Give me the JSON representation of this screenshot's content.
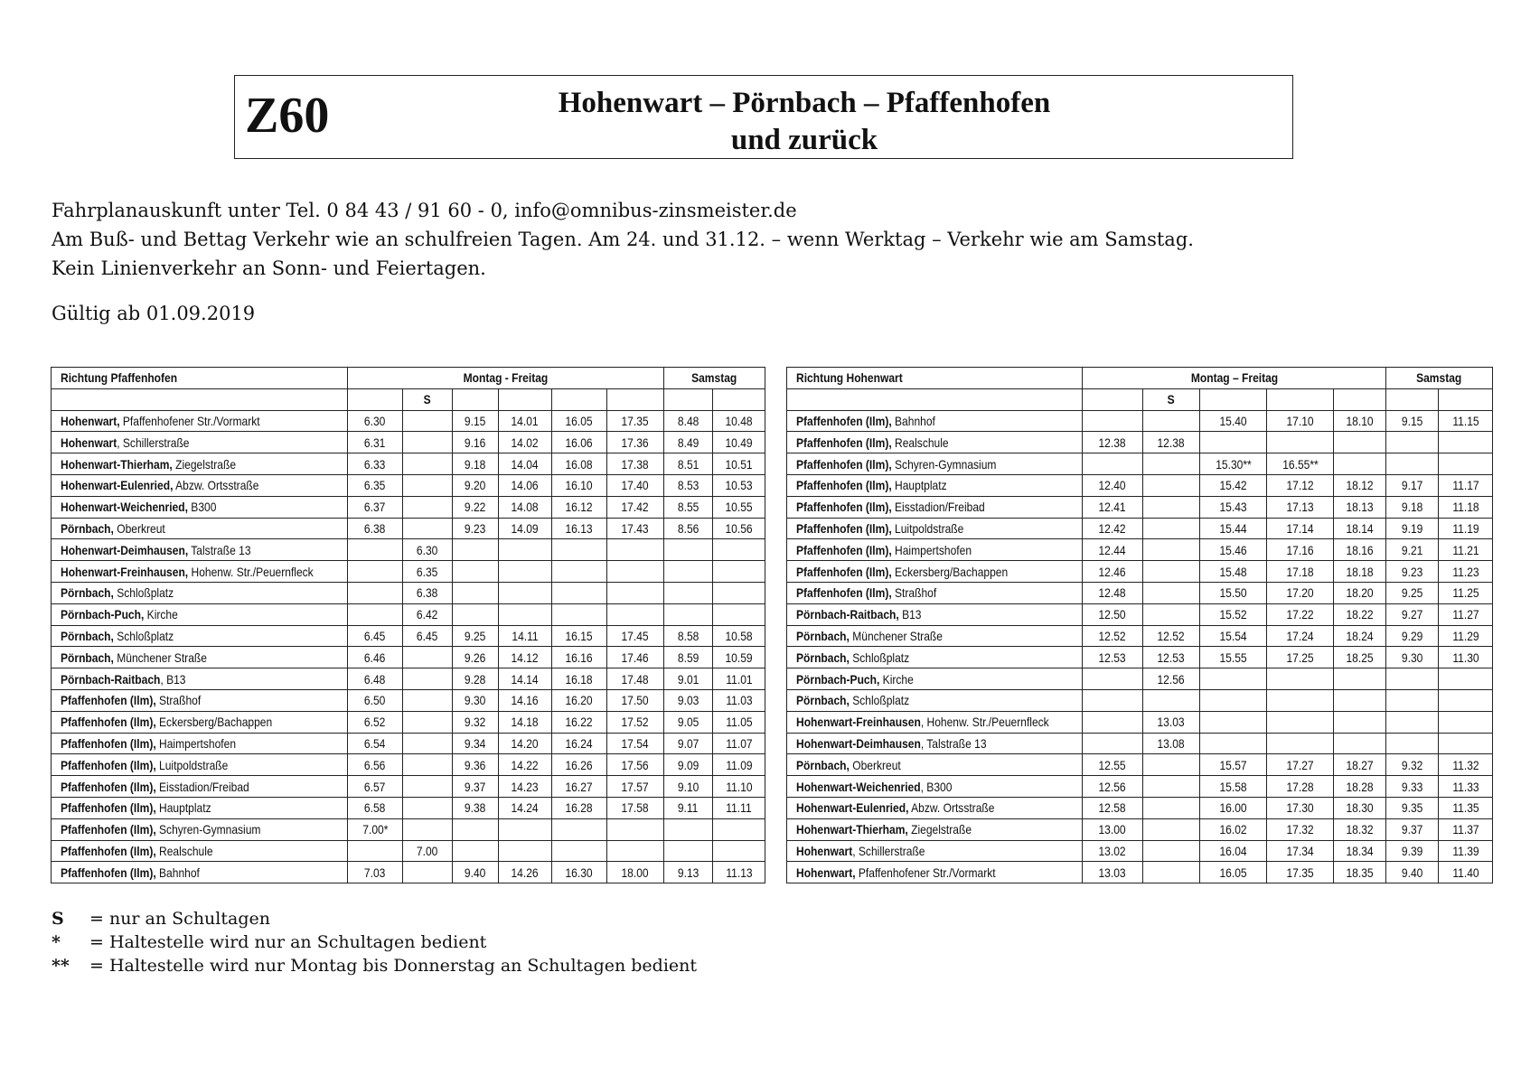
{
  "header": {
    "line_number": "Z60",
    "title_line1": "Hohenwart – Pörnbach – Pfaffenhofen",
    "title_line2": "und zurück"
  },
  "info": {
    "contact": "Fahrplanauskunft unter Tel. 0 84 43 / 91 60 - 0, info@omnibus-zinsmeister.de",
    "holiday_note": "Am Buß- und Bettag Verkehr wie an schulfreien Tagen. Am 24. und 31.12. – wenn Werktag – Verkehr wie am Samstag.",
    "sunday_note": "Kein Linienverkehr an Sonn- und Feiertagen.",
    "valid_from": "Gültig ab 01.09.2019"
  },
  "tables": [
    {
      "direction": "Richtung Pfaffenhofen",
      "weekday_label": "Montag - Freitag",
      "saturday_label": "Samstag",
      "column_flags": [
        "",
        "S",
        "",
        "",
        "",
        "",
        "",
        ""
      ],
      "rows": [
        {
          "bold": "Hohenwart,",
          "rest": " Pfaffenhofener Str./Vormarkt",
          "times": [
            "6.30",
            "",
            "9.15",
            "14.01",
            "16.05",
            "17.35",
            "8.48",
            "10.48"
          ]
        },
        {
          "bold": "Hohenwart",
          "rest": ", Schillerstraße",
          "times": [
            "6.31",
            "",
            "9.16",
            "14.02",
            "16.06",
            "17.36",
            "8.49",
            "10.49"
          ]
        },
        {
          "bold": "Hohenwart-Thierham,",
          "rest": " Ziegelstraße",
          "times": [
            "6.33",
            "",
            "9.18",
            "14.04",
            "16.08",
            "17.38",
            "8.51",
            "10.51"
          ]
        },
        {
          "bold": "Hohenwart-Eulenried,",
          "rest": " Abzw. Ortsstraße",
          "times": [
            "6.35",
            "",
            "9.20",
            "14.06",
            "16.10",
            "17.40",
            "8.53",
            "10.53"
          ]
        },
        {
          "bold": "Hohenwart-Weichenried,",
          "rest": " B300",
          "times": [
            "6.37",
            "",
            "9.22",
            "14.08",
            "16.12",
            "17.42",
            "8.55",
            "10.55"
          ]
        },
        {
          "bold": "Pörnbach,",
          "rest": " Oberkreut",
          "times": [
            "6.38",
            "",
            "9.23",
            "14.09",
            "16.13",
            "17.43",
            "8.56",
            "10.56"
          ]
        },
        {
          "bold": "Hohenwart-Deimhausen,",
          "rest": " Talstraße 13",
          "times": [
            "",
            "6.30",
            "",
            "",
            "",
            "",
            "",
            ""
          ]
        },
        {
          "bold": "Hohenwart-Freinhausen,",
          "rest": " Hohenw. Str./Peuernfleck",
          "times": [
            "",
            "6.35",
            "",
            "",
            "",
            "",
            "",
            ""
          ]
        },
        {
          "bold": "Pörnbach,",
          "rest": " Schloßplatz",
          "times": [
            "",
            "6.38",
            "",
            "",
            "",
            "",
            "",
            ""
          ]
        },
        {
          "bold": "Pörnbach-Puch,",
          "rest": " Kirche",
          "times": [
            "",
            "6.42",
            "",
            "",
            "",
            "",
            "",
            ""
          ]
        },
        {
          "bold": "Pörnbach,",
          "rest": " Schloßplatz",
          "times": [
            "6.45",
            "6.45",
            "9.25",
            "14.11",
            "16.15",
            "17.45",
            "8.58",
            "10.58"
          ]
        },
        {
          "bold": "Pörnbach,",
          "rest": " Münchener Straße",
          "times": [
            "6.46",
            "",
            "9.26",
            "14.12",
            "16.16",
            "17.46",
            "8.59",
            "10.59"
          ]
        },
        {
          "bold": "Pörnbach-Raitbach",
          "rest": ", B13",
          "times": [
            "6.48",
            "",
            "9.28",
            "14.14",
            "16.18",
            "17.48",
            "9.01",
            "11.01"
          ]
        },
        {
          "bold": "Pfaffenhofen (Ilm),",
          "rest": " Straßhof",
          "times": [
            "6.50",
            "",
            "9.30",
            "14.16",
            "16.20",
            "17.50",
            "9.03",
            "11.03"
          ]
        },
        {
          "bold": "Pfaffenhofen (Ilm),",
          "rest": " Eckersberg/Bachappen",
          "times": [
            "6.52",
            "",
            "9.32",
            "14.18",
            "16.22",
            "17.52",
            "9.05",
            "11.05"
          ]
        },
        {
          "bold": "Pfaffenhofen (Ilm),",
          "rest": " Haimpertshofen",
          "times": [
            "6.54",
            "",
            "9.34",
            "14.20",
            "16.24",
            "17.54",
            "9.07",
            "11.07"
          ]
        },
        {
          "bold": "Pfaffenhofen (Ilm),",
          "rest": " Luitpoldstraße",
          "times": [
            "6.56",
            "",
            "9.36",
            "14.22",
            "16.26",
            "17.56",
            "9.09",
            "11.09"
          ]
        },
        {
          "bold": "Pfaffenhofen (Ilm),",
          "rest": " Eisstadion/Freibad",
          "times": [
            "6.57",
            "",
            "9.37",
            "14.23",
            "16.27",
            "17.57",
            "9.10",
            "11.10"
          ]
        },
        {
          "bold": "Pfaffenhofen (Ilm),",
          "rest": " Hauptplatz",
          "times": [
            "6.58",
            "",
            "9.38",
            "14.24",
            "16.28",
            "17.58",
            "9.11",
            "11.11"
          ]
        },
        {
          "bold": "Pfaffenhofen (Ilm),",
          "rest": " Schyren-Gymnasium",
          "times": [
            "7.00*",
            "",
            "",
            "",
            "",
            "",
            "",
            ""
          ]
        },
        {
          "bold": "Pfaffenhofen (Ilm),",
          "rest": " Realschule",
          "times": [
            "",
            "7.00",
            "",
            "",
            "",
            "",
            "",
            ""
          ]
        },
        {
          "bold": "Pfaffenhofen (Ilm),",
          "rest": " Bahnhof",
          "times": [
            "7.03",
            "",
            "9.40",
            "14.26",
            "16.30",
            "18.00",
            "9.13",
            "11.13"
          ]
        }
      ]
    },
    {
      "direction": "Richtung Hohenwart",
      "weekday_label": "Montag – Freitag",
      "saturday_label": "Samstag",
      "column_flags": [
        "",
        "S",
        "",
        "",
        "",
        "",
        ""
      ],
      "rows": [
        {
          "bold": "Pfaffenhofen (Ilm),",
          "rest": " Bahnhof",
          "times": [
            "",
            "",
            "15.40",
            "17.10",
            "18.10",
            "9.15",
            "11.15"
          ]
        },
        {
          "bold": "Pfaffenhofen (Ilm),",
          "rest": " Realschule",
          "times": [
            "12.38",
            "12.38",
            "",
            "",
            "",
            "",
            ""
          ]
        },
        {
          "bold": "Pfaffenhofen (Ilm),",
          "rest": " Schyren-Gymnasium",
          "times": [
            "",
            "",
            "15.30**",
            "16.55**",
            "",
            "",
            ""
          ]
        },
        {
          "bold": "Pfaffenhofen (Ilm),",
          "rest": " Hauptplatz",
          "times": [
            "12.40",
            "",
            "15.42",
            "17.12",
            "18.12",
            "9.17",
            "11.17"
          ]
        },
        {
          "bold": "Pfaffenhofen (Ilm),",
          "rest": " Eisstadion/Freibad",
          "times": [
            "12.41",
            "",
            "15.43",
            "17.13",
            "18.13",
            "9.18",
            "11.18"
          ]
        },
        {
          "bold": "Pfaffenhofen (Ilm),",
          "rest": " Luitpoldstraße",
          "times": [
            "12.42",
            "",
            "15.44",
            "17.14",
            "18.14",
            "9.19",
            "11.19"
          ]
        },
        {
          "bold": "Pfaffenhofen (Ilm),",
          "rest": " Haimpertshofen",
          "times": [
            "12.44",
            "",
            "15.46",
            "17.16",
            "18.16",
            "9.21",
            "11.21"
          ]
        },
        {
          "bold": "Pfaffenhofen (Ilm),",
          "rest": " Eckersberg/Bachappen",
          "times": [
            "12.46",
            "",
            "15.48",
            "17.18",
            "18.18",
            "9.23",
            "11.23"
          ]
        },
        {
          "bold": "Pfaffenhofen (Ilm),",
          "rest": " Straßhof",
          "times": [
            "12.48",
            "",
            "15.50",
            "17.20",
            "18.20",
            "9.25",
            "11.25"
          ]
        },
        {
          "bold": "Pörnbach-Raitbach,",
          "rest": " B13",
          "times": [
            "12.50",
            "",
            "15.52",
            "17.22",
            "18.22",
            "9.27",
            "11.27"
          ]
        },
        {
          "bold": "Pörnbach,",
          "rest": " Münchener Straße",
          "times": [
            "12.52",
            "12.52",
            "15.54",
            "17.24",
            "18.24",
            "9.29",
            "11.29"
          ]
        },
        {
          "bold": "Pörnbach,",
          "rest": " Schloßplatz",
          "times": [
            "12.53",
            "12.53",
            "15.55",
            "17.25",
            "18.25",
            "9.30",
            "11.30"
          ]
        },
        {
          "bold": "Pörnbach-Puch,",
          "rest": " Kirche",
          "times": [
            "",
            "12.56",
            "",
            "",
            "",
            "",
            ""
          ]
        },
        {
          "bold": "Pörnbach,",
          "rest": " Schloßplatz",
          "times": [
            "",
            "",
            "",
            "",
            "",
            "",
            ""
          ]
        },
        {
          "bold": "Hohenwart-Freinhausen",
          "rest": ", Hohenw. Str./Peuernfleck",
          "times": [
            "",
            "13.03",
            "",
            "",
            "",
            "",
            ""
          ]
        },
        {
          "bold": "Hohenwart-Deimhausen",
          "rest": ", Talstraße 13",
          "times": [
            "",
            "13.08",
            "",
            "",
            "",
            "",
            ""
          ]
        },
        {
          "bold": "Pörnbach,",
          "rest": " Oberkreut",
          "times": [
            "12.55",
            "",
            "15.57",
            "17.27",
            "18.27",
            "9.32",
            "11.32"
          ]
        },
        {
          "bold": "Hohenwart-Weichenried",
          "rest": ", B300",
          "times": [
            "12.56",
            "",
            "15.58",
            "17.28",
            "18.28",
            "9.33",
            "11.33"
          ]
        },
        {
          "bold": "Hohenwart-Eulenried,",
          "rest": " Abzw. Ortsstraße",
          "times": [
            "12.58",
            "",
            "16.00",
            "17.30",
            "18.30",
            "9.35",
            "11.35"
          ]
        },
        {
          "bold": "Hohenwart-Thierham,",
          "rest": " Ziegelstraße",
          "times": [
            "13.00",
            "",
            "16.02",
            "17.32",
            "18.32",
            "9.37",
            "11.37"
          ]
        },
        {
          "bold": "Hohenwart",
          "rest": ", Schillerstraße",
          "times": [
            "13.02",
            "",
            "16.04",
            "17.34",
            "18.34",
            "9.39",
            "11.39"
          ]
        },
        {
          "bold": "Hohenwart,",
          "rest": " Pfaffenhofener Str./Vormarkt",
          "times": [
            "13.03",
            "",
            "16.05",
            "17.35",
            "18.35",
            "9.40",
            "11.40"
          ]
        }
      ]
    }
  ],
  "legend": [
    {
      "symbol": "S",
      "text": "= nur an Schultagen"
    },
    {
      "symbol": "*",
      "text": "= Haltestelle wird nur an Schultagen bedient"
    },
    {
      "symbol": "**",
      "text": "= Haltestelle wird nur Montag bis Donnerstag an Schultagen bedient"
    }
  ]
}
